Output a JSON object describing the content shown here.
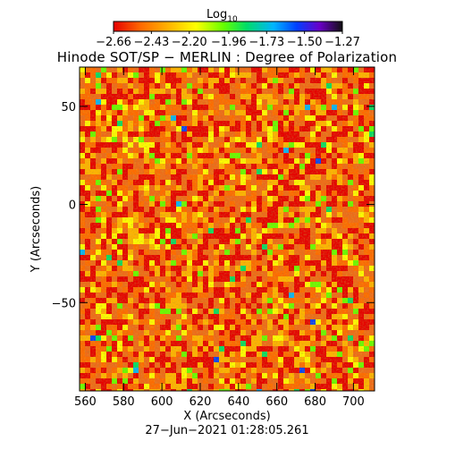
{
  "chart_data": {
    "type": "heatmap",
    "title": "Hinode SOT/SP − MERLIN : Degree of Polarization",
    "xlabel": "X (Arcseconds)",
    "ylabel": "Y (Arcseconds)",
    "timestamp": "27−Jun−2021 01:28:05.261",
    "xlim": [
      557,
      711
    ],
    "ylim": [
      -95,
      70
    ],
    "x_ticks": [
      560,
      580,
      600,
      620,
      640,
      660,
      680,
      700
    ],
    "x_tick_labels": [
      "560",
      "580",
      "600",
      "620",
      "640",
      "660",
      "680",
      "700"
    ],
    "y_ticks": [
      50,
      0,
      -50
    ],
    "y_tick_labels": [
      "50",
      "0",
      "−50"
    ],
    "colorbar": {
      "label": "Log",
      "label_subscript": "10",
      "min": -2.66,
      "max": -1.27,
      "ticks": [
        -2.66,
        -2.43,
        -2.2,
        -1.96,
        -1.73,
        -1.5,
        -1.27
      ],
      "tick_labels": [
        "−2.66",
        "−2.43",
        "−2.20",
        "−1.96",
        "−1.73",
        "−1.50",
        "−1.27"
      ],
      "colors": [
        "#e60000",
        "#ff6a00",
        "#ffb400",
        "#ffff00",
        "#66ff00",
        "#00dd66",
        "#00b4ff",
        "#0040ff",
        "#6a00c8",
        "#101010"
      ]
    },
    "typical_value": -2.45,
    "dominant_color": "#f06a18"
  }
}
